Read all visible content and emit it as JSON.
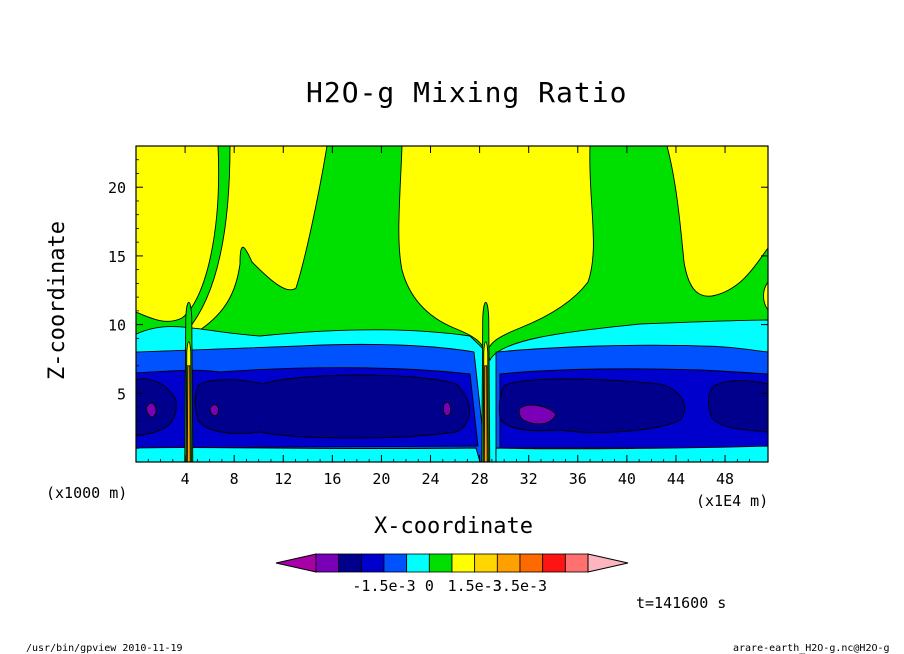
{
  "chart_data": {
    "type": "heatmap",
    "title": "H2O-g Mixing Ratio",
    "xlabel": "X-coordinate",
    "ylabel": "Z-coordinate",
    "x_unit_left": "(x1000 m)",
    "x_unit_right": "(x1E4 m)",
    "x_ticks": [
      "4",
      "8",
      "12",
      "16",
      "20",
      "24",
      "28",
      "32",
      "36",
      "40",
      "44",
      "48"
    ],
    "x_tick_values": [
      4,
      8,
      12,
      16,
      20,
      24,
      28,
      32,
      36,
      40,
      44,
      48
    ],
    "xlim": [
      0,
      51.5
    ],
    "y_ticks": [
      "5",
      "10",
      "15",
      "20"
    ],
    "y_tick_values": [
      5,
      10,
      15,
      20
    ],
    "ylim": [
      0,
      23
    ],
    "time_label": "t=141600 s",
    "colorbar": {
      "colors": [
        "#a600a6",
        "#7a00b8",
        "#00008c",
        "#0000cc",
        "#0052ff",
        "#00ffff",
        "#00e000",
        "#ffff00",
        "#ffd600",
        "#ff9f00",
        "#ff6a00",
        "#ff1414",
        "#ff7070",
        "#ffb5c0"
      ],
      "labels": [
        "-1.5e-3",
        "0",
        "1.5e-3",
        "3.5e-3"
      ],
      "label_indices": [
        3,
        5,
        7,
        9
      ]
    },
    "contour_levels": [
      "dark-blue core (~-2.0e-3)",
      "blue (~-1.5e-3)",
      "light-blue (~-1.0e-3)",
      "cyan (~-5e-4)",
      "green (~0)",
      "yellow (~5e-4)",
      "orange spikes near x=4 and x=28"
    ]
  },
  "footer": {
    "left": "/usr/bin/gpview  2010-11-19",
    "right": "arare-earth_H2O-g.nc@H2O-g"
  }
}
